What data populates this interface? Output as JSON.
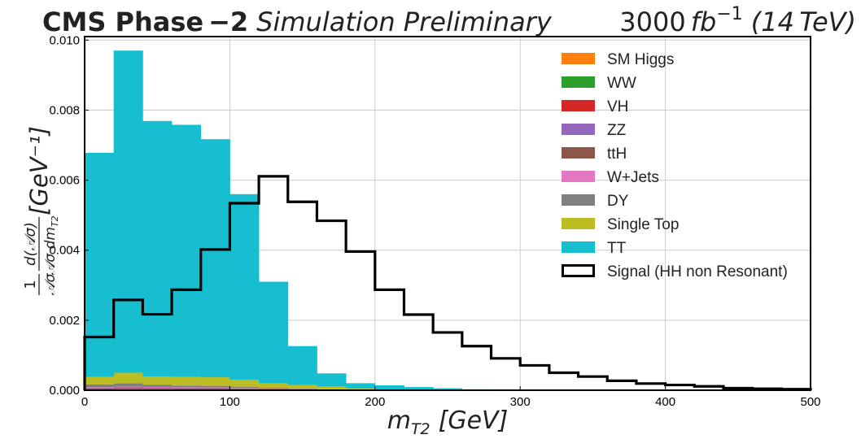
{
  "header": {
    "experiment": "CMS Phase",
    "experiment_suffix": "−2",
    "status": "Simulation Preliminary",
    "lumi_value": "3000",
    "lumi_unit": "fb",
    "lumi_exp": "−1",
    "energy": "(14 TeV)"
  },
  "chart_data": {
    "type": "histogram",
    "bin_edges": [
      0,
      20,
      40,
      60,
      80,
      100,
      120,
      140,
      160,
      180,
      200,
      220,
      240,
      260,
      280,
      300,
      320,
      340,
      360,
      380,
      400,
      420,
      440,
      460,
      480,
      500
    ],
    "xlabel": "m_T2 [GeV]",
    "xlabel_main": "m",
    "xlabel_sub": "T2",
    "xlabel_unit": "[GeV]",
    "ylabel_unit": "[GeV⁻¹]",
    "ylabel_fraction_numerator": "1",
    "ylabel_fraction_denominator": "𝒜σ",
    "ylabel_derivative_numerator": "d(𝒜σ)",
    "ylabel_derivative_denominator": "𝒜σ dm",
    "ylabel_derivative_sub": "T2",
    "xlim": [
      0,
      500
    ],
    "ylim": [
      0,
      0.0101
    ],
    "xticks": [
      0,
      100,
      200,
      300,
      400,
      500
    ],
    "xtick_labels": [
      "0",
      "100",
      "200",
      "300",
      "400",
      "500"
    ],
    "yticks": [
      0.0,
      0.002,
      0.004,
      0.006,
      0.008,
      0.01
    ],
    "ytick_labels": [
      "0.000",
      "0.002",
      "0.004",
      "0.006",
      "0.008",
      "0.010"
    ],
    "grid": true,
    "legend_position": "top-right",
    "stacked_series": [
      {
        "name": "SM Higgs",
        "color": "#ff7f0e",
        "values": [
          5e-06,
          5e-06,
          5e-06,
          5e-06,
          5e-06,
          4e-06,
          3e-06,
          2e-06,
          1e-06,
          1e-06,
          0,
          0,
          0,
          0,
          0,
          0,
          0,
          0,
          0,
          0,
          0,
          0,
          0,
          0,
          0
        ]
      },
      {
        "name": "WW",
        "color": "#2ca02c",
        "values": [
          1e-05,
          1e-05,
          1e-05,
          1e-05,
          1e-05,
          8e-06,
          6e-06,
          4e-06,
          2e-06,
          1e-06,
          0,
          0,
          0,
          0,
          0,
          0,
          0,
          0,
          0,
          0,
          0,
          0,
          0,
          0,
          0
        ]
      },
      {
        "name": "VH",
        "color": "#d62728",
        "values": [
          1e-05,
          1.5e-05,
          1.5e-05,
          1e-05,
          1e-05,
          8e-06,
          6e-06,
          4e-06,
          2e-06,
          1e-06,
          0,
          0,
          0,
          0,
          0,
          0,
          0,
          0,
          0,
          0,
          0,
          0,
          0,
          0,
          0
        ]
      },
      {
        "name": "ZZ",
        "color": "#9467bd",
        "values": [
          1e-05,
          1e-05,
          1e-05,
          1e-05,
          1e-05,
          8e-06,
          6e-06,
          4e-06,
          2e-06,
          1e-06,
          0,
          0,
          0,
          0,
          0,
          0,
          0,
          0,
          0,
          0,
          0,
          0,
          0,
          0,
          0
        ]
      },
      {
        "name": "ttH",
        "color": "#8c564b",
        "values": [
          3e-05,
          4e-05,
          3e-05,
          3e-05,
          3e-05,
          2e-05,
          1.5e-05,
          1e-05,
          5e-06,
          3e-06,
          0,
          0,
          0,
          0,
          0,
          0,
          0,
          0,
          0,
          0,
          0,
          0,
          0,
          0,
          0
        ]
      },
      {
        "name": "W+Jets",
        "color": "#e377c2",
        "values": [
          2e-05,
          2e-05,
          2e-05,
          2e-05,
          2e-05,
          1.5e-05,
          1e-05,
          8e-06,
          5e-06,
          3e-06,
          0,
          0,
          0,
          0,
          0,
          0,
          0,
          0,
          0,
          0,
          0,
          0,
          0,
          0,
          0
        ]
      },
      {
        "name": "DY",
        "color": "#7f7f7f",
        "values": [
          8e-05,
          0.0001,
          7e-05,
          5e-05,
          4e-05,
          3e-05,
          2e-05,
          1.5e-05,
          1e-05,
          5e-06,
          0,
          0,
          0,
          0,
          0,
          0,
          0,
          0,
          0,
          0,
          0,
          0,
          0,
          0,
          0
        ]
      },
      {
        "name": "Single Top",
        "color": "#bcbd22",
        "values": [
          0.000215,
          0.0003,
          0.00023,
          0.000245,
          0.000245,
          0.000207,
          0.000134,
          0.000103,
          7.3e-05,
          3.5e-05,
          2e-05,
          1e-05,
          5e-06,
          0,
          0,
          0,
          0,
          0,
          0,
          0,
          0,
          0,
          0,
          0,
          0
        ]
      },
      {
        "name": "TT",
        "color": "#17becf",
        "values": [
          0.0064,
          0.0092,
          0.0073,
          0.0072,
          0.0068,
          0.0053,
          0.0029,
          0.00111,
          0.00038,
          0.00015,
          0.00012,
          8e-05,
          5e-05,
          2.5e-05,
          1e-05,
          0,
          0,
          0,
          0,
          0,
          0,
          0,
          0,
          0,
          0
        ]
      }
    ],
    "signal_series": {
      "name": "Signal (HH non Resonant)",
      "color": "#000000",
      "values": [
        0.00152,
        0.00258,
        0.00217,
        0.00287,
        0.00402,
        0.00534,
        0.00611,
        0.00538,
        0.00484,
        0.00396,
        0.00287,
        0.00216,
        0.00165,
        0.00126,
        0.00091,
        0.00071,
        0.0005,
        0.00039,
        0.00027,
        0.00019,
        0.00015,
        0.00011,
        6e-05,
        4e-05,
        3e-05
      ]
    }
  }
}
